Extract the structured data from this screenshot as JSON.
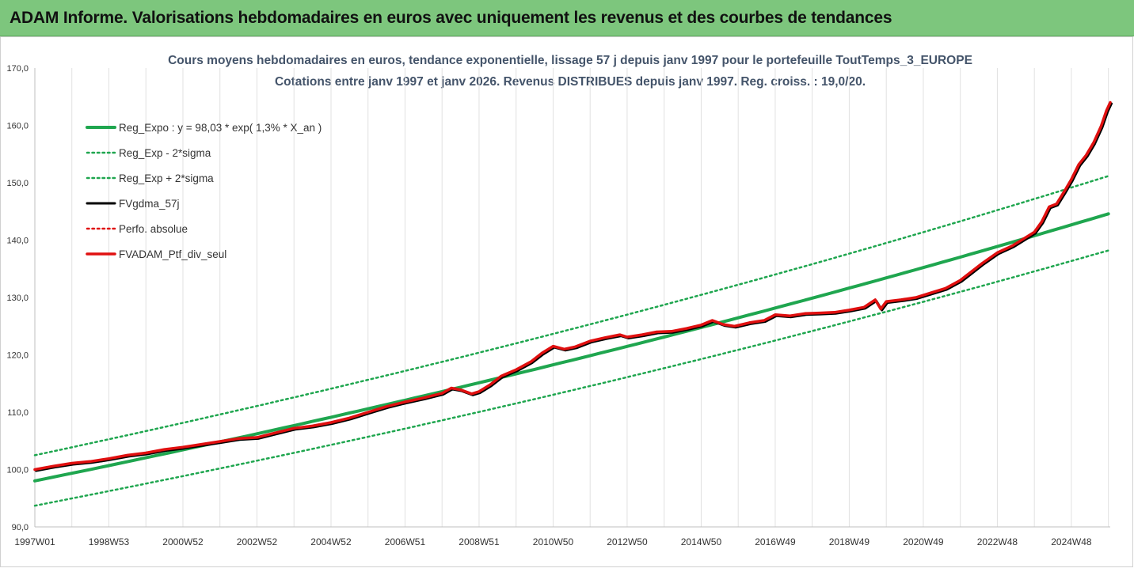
{
  "banner": {
    "title": "ADAM Informe. Valorisations hebdomadaires en euros avec uniquement les revenus et des courbes de tendances"
  },
  "chart_data": {
    "type": "line",
    "title": "Cours moyens hebdomadaires  en euros, tendance exponentielle, lissage 57 j depuis janv 1997 pour le portefeuille ToutTemps_3_EUROPE",
    "subtitle": "Cotations entre janv 1997 et janv 2026. Revenus DISTRIBUES depuis janv 1997. Reg. croiss. : 19,0/20.",
    "x_ticks": [
      "1997W01",
      "1998W53",
      "2000W52",
      "2002W52",
      "2004W52",
      "2006W51",
      "2008W51",
      "2010W50",
      "2012W50",
      "2014W50",
      "2016W49",
      "2018W49",
      "2020W49",
      "2022W48",
      "2024W48"
    ],
    "x_range": [
      1997.0,
      2026.05
    ],
    "y_ticks": [
      "90,0",
      "100,0",
      "110,0",
      "120,0",
      "130,0",
      "140,0",
      "150,0",
      "160,0",
      "170,0"
    ],
    "ylim": [
      90,
      170
    ],
    "legend_position": "top-left",
    "grid": {
      "vertical": true,
      "horizontal": false
    },
    "series": [
      {
        "name": "Reg_Expo : y = 98,03 * exp( 1,3% *  X_an )",
        "color": "#1fa64f",
        "style": "solid",
        "width": 4,
        "formula": {
          "a": 98.03,
          "b": 0.0134,
          "start_year": 1997.0
        }
      },
      {
        "name": "Reg_Exp - 2*sigma",
        "color": "#1fa64f",
        "style": "dotted",
        "width": 2.5,
        "formula": {
          "a": 93.7,
          "b": 0.0134,
          "start_year": 1997.0
        }
      },
      {
        "name": "Reg_Exp + 2*sigma",
        "color": "#1fa64f",
        "style": "dotted",
        "width": 2.5,
        "formula": {
          "a": 102.5,
          "b": 0.0134,
          "start_year": 1997.0
        }
      },
      {
        "name": "FVgdma_57j",
        "color": "#000000",
        "style": "solid",
        "width": 3,
        "follows": "FVADAM_Ptf_div_seul"
      },
      {
        "name": "Perfo. absolue",
        "color": "#e01010",
        "style": "dotted",
        "width": 2.5,
        "follows": "FVADAM_Ptf_div_seul"
      },
      {
        "name": "FVADAM_Ptf_div_seul",
        "color": "#e01010",
        "style": "solid",
        "width": 3.5,
        "points": [
          [
            1997.0,
            100.0
          ],
          [
            1997.5,
            100.6
          ],
          [
            1998.0,
            101.1
          ],
          [
            1998.5,
            101.4
          ],
          [
            1999.0,
            101.9
          ],
          [
            1999.5,
            102.5
          ],
          [
            2000.0,
            102.9
          ],
          [
            2000.5,
            103.5
          ],
          [
            2001.0,
            103.9
          ],
          [
            2001.5,
            104.4
          ],
          [
            2002.0,
            104.9
          ],
          [
            2002.5,
            105.4
          ],
          [
            2003.0,
            105.6
          ],
          [
            2003.5,
            106.4
          ],
          [
            2004.0,
            107.2
          ],
          [
            2004.5,
            107.6
          ],
          [
            2005.0,
            108.2
          ],
          [
            2005.5,
            109.0
          ],
          [
            2006.0,
            110.0
          ],
          [
            2006.5,
            111.0
          ],
          [
            2007.0,
            111.8
          ],
          [
            2007.5,
            112.5
          ],
          [
            2008.0,
            113.3
          ],
          [
            2008.25,
            114.2
          ],
          [
            2008.5,
            113.9
          ],
          [
            2008.8,
            113.2
          ],
          [
            2009.0,
            113.6
          ],
          [
            2009.3,
            114.8
          ],
          [
            2009.6,
            116.3
          ],
          [
            2010.0,
            117.4
          ],
          [
            2010.4,
            118.8
          ],
          [
            2010.7,
            120.3
          ],
          [
            2011.0,
            121.5
          ],
          [
            2011.3,
            121.0
          ],
          [
            2011.6,
            121.4
          ],
          [
            2012.0,
            122.4
          ],
          [
            2012.4,
            123.0
          ],
          [
            2012.8,
            123.5
          ],
          [
            2013.0,
            123.1
          ],
          [
            2013.4,
            123.5
          ],
          [
            2013.8,
            124.0
          ],
          [
            2014.2,
            124.1
          ],
          [
            2014.6,
            124.6
          ],
          [
            2015.0,
            125.2
          ],
          [
            2015.3,
            126.0
          ],
          [
            2015.6,
            125.3
          ],
          [
            2015.9,
            125.0
          ],
          [
            2016.3,
            125.6
          ],
          [
            2016.7,
            126.0
          ],
          [
            2017.0,
            127.0
          ],
          [
            2017.4,
            126.8
          ],
          [
            2017.8,
            127.2
          ],
          [
            2018.2,
            127.3
          ],
          [
            2018.6,
            127.4
          ],
          [
            2019.0,
            127.8
          ],
          [
            2019.4,
            128.3
          ],
          [
            2019.7,
            129.6
          ],
          [
            2019.85,
            128.0
          ],
          [
            2020.0,
            129.3
          ],
          [
            2020.4,
            129.6
          ],
          [
            2020.8,
            130.0
          ],
          [
            2021.2,
            130.8
          ],
          [
            2021.6,
            131.6
          ],
          [
            2022.0,
            133.0
          ],
          [
            2022.3,
            134.5
          ],
          [
            2022.6,
            136.0
          ],
          [
            2023.0,
            137.8
          ],
          [
            2023.4,
            139.0
          ],
          [
            2023.8,
            140.6
          ],
          [
            2024.0,
            141.4
          ],
          [
            2024.2,
            143.2
          ],
          [
            2024.4,
            145.8
          ],
          [
            2024.6,
            146.3
          ],
          [
            2024.8,
            148.4
          ],
          [
            2025.0,
            150.6
          ],
          [
            2025.2,
            153.2
          ],
          [
            2025.4,
            154.8
          ],
          [
            2025.6,
            157.0
          ],
          [
            2025.8,
            159.8
          ],
          [
            2025.95,
            162.6
          ],
          [
            2026.05,
            164.0
          ]
        ]
      }
    ]
  }
}
